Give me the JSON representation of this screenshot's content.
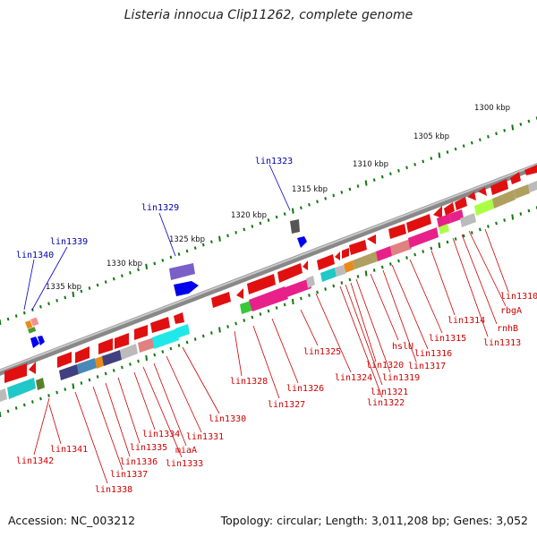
{
  "title": "Listeria innocua Clip11262, complete genome",
  "footer": {
    "accession_label": "Accession:",
    "accession": "NC_003212",
    "topology_text": "Topology: circular; Length: 3,011,208 bp; Genes: 3,052"
  },
  "scale_ticks": [
    {
      "label": "1300 kbp"
    },
    {
      "label": "1305 kbp"
    },
    {
      "label": "1310 kbp"
    },
    {
      "label": "1315 kbp"
    },
    {
      "label": "1320 kbp"
    },
    {
      "label": "1325 kbp"
    },
    {
      "label": "1330 kbp"
    },
    {
      "label": "1335 kbp"
    }
  ],
  "forward_gene_labels": [
    "lin1323",
    "lin1329",
    "lin1339",
    "lin1340"
  ],
  "reverse_gene_labels": [
    "lin1310",
    "rbgA",
    "rnhB",
    "lin1313",
    "lin1314",
    "lin1315",
    "lin1316",
    "lin1317",
    "hslU",
    "lin1319",
    "lin1320",
    "lin1321",
    "lin1322",
    "lin1324",
    "lin1325",
    "lin1326",
    "lin1327",
    "lin1328",
    "lin1330",
    "lin1331",
    "miaA",
    "lin1333",
    "lin1334",
    "lin1335",
    "lin1336",
    "lin1337",
    "lin1338",
    "lin1341",
    "lin1342"
  ],
  "colors": {
    "forward_gene": "#0000ee",
    "reverse_gene": "#ee0000",
    "backbone": "#888888",
    "tick": "#117711",
    "label_red": "#cc0000",
    "label_blue": "#0000aa"
  }
}
